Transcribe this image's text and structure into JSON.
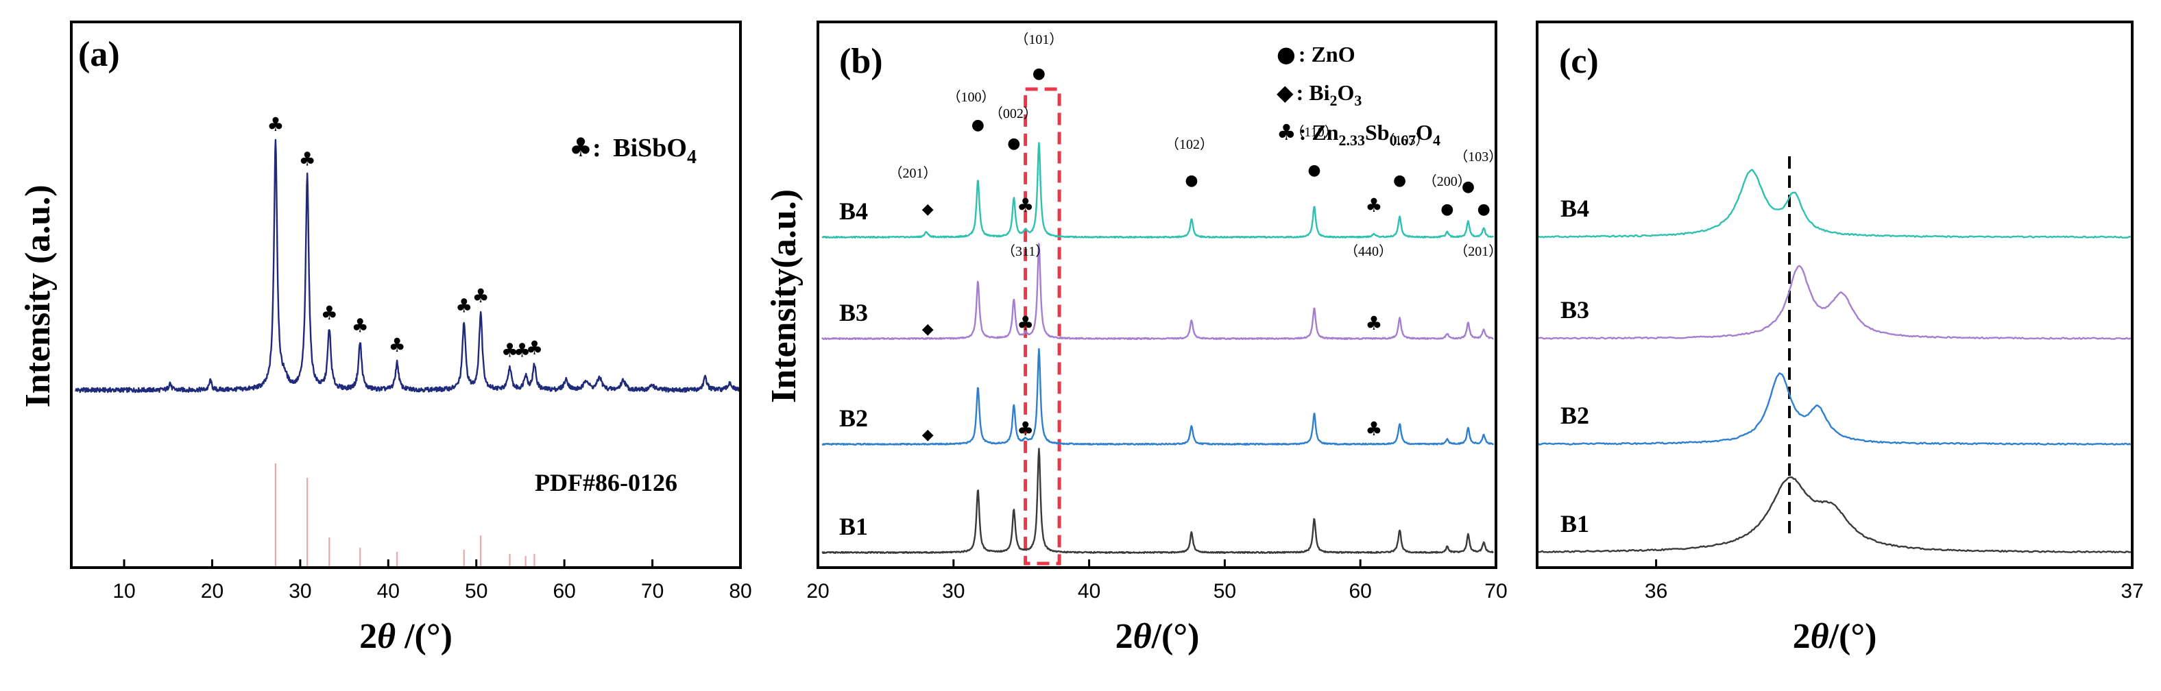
{
  "colors": {
    "panel_a_trace": "#1f2a7a",
    "reference_bars": "#e6a8a8",
    "B1": "#3a3a3a",
    "B2": "#2f7fcf",
    "B3": "#a57ed0",
    "B4": "#2fc0b0",
    "highlight_box": "#e8384a"
  },
  "marker_icons": {
    "ZnO": "filled-circle-icon",
    "Bi2O3": "filled-diamond-icon",
    "Zn2.33Sb0.67O4": "club-icon",
    "BiSbO4": "club-icon"
  },
  "chart_data": [
    {
      "panel": "(a)",
      "type": "line",
      "xlabel_main": "2",
      "xlabel_italic": "θ",
      "xlabel_unit": " /(°)",
      "ylabel": "Intensity (a.u.)",
      "xlim": [
        4,
        80
      ],
      "xticks": [
        "10",
        "20",
        "30",
        "40",
        "50",
        "60",
        "70",
        "80"
      ],
      "xtick_values": [
        10,
        20,
        30,
        40,
        50,
        60,
        70,
        80
      ],
      "legend": {
        "marker": "♣",
        "sep": ": ",
        "text": "BiSbO",
        "sub": "4"
      },
      "reference_label": "PDF#86-0126",
      "baseline": 0.08,
      "peaks": [
        {
          "x": 15.2,
          "h": 0.03,
          "w": 0.15
        },
        {
          "x": 19.8,
          "h": 0.04,
          "w": 0.15
        },
        {
          "x": 27.2,
          "h": 1.0,
          "w": 0.22
        },
        {
          "x": 28.2,
          "h": 0.04,
          "w": 0.4
        },
        {
          "x": 30.8,
          "h": 0.86,
          "w": 0.22
        },
        {
          "x": 33.3,
          "h": 0.24,
          "w": 0.22
        },
        {
          "x": 36.8,
          "h": 0.19,
          "w": 0.22
        },
        {
          "x": 41.0,
          "h": 0.11,
          "w": 0.22
        },
        {
          "x": 48.6,
          "h": 0.27,
          "w": 0.22
        },
        {
          "x": 50.5,
          "h": 0.31,
          "w": 0.22
        },
        {
          "x": 53.8,
          "h": 0.09,
          "w": 0.22
        },
        {
          "x": 55.6,
          "h": 0.06,
          "w": 0.22
        },
        {
          "x": 56.6,
          "h": 0.1,
          "w": 0.22
        },
        {
          "x": 60.2,
          "h": 0.04,
          "w": 0.3
        },
        {
          "x": 62.5,
          "h": 0.04,
          "w": 0.3
        },
        {
          "x": 64.0,
          "h": 0.05,
          "w": 0.3
        },
        {
          "x": 66.7,
          "h": 0.04,
          "w": 0.3
        },
        {
          "x": 70.0,
          "h": 0.02,
          "w": 0.3
        },
        {
          "x": 76.0,
          "h": 0.05,
          "w": 0.25
        },
        {
          "x": 78.8,
          "h": 0.03,
          "w": 0.25
        }
      ],
      "peak_markers": [
        {
          "x": 27.2,
          "y": 1.0
        },
        {
          "x": 30.8,
          "y": 0.86
        },
        {
          "x": 33.3,
          "y": 0.24
        },
        {
          "x": 36.8,
          "y": 0.19
        },
        {
          "x": 41.0,
          "y": 0.11
        },
        {
          "x": 48.6,
          "y": 0.27
        },
        {
          "x": 50.5,
          "y": 0.31
        },
        {
          "x": 53.8,
          "y": 0.09
        },
        {
          "x": 55.2,
          "y": 0.09
        },
        {
          "x": 56.6,
          "y": 0.1
        }
      ],
      "reference_lines": [
        {
          "x": 27.2,
          "h": 1.0
        },
        {
          "x": 30.8,
          "h": 0.86
        },
        {
          "x": 33.3,
          "h": 0.28
        },
        {
          "x": 36.8,
          "h": 0.18
        },
        {
          "x": 41.0,
          "h": 0.14
        },
        {
          "x": 48.6,
          "h": 0.16
        },
        {
          "x": 50.5,
          "h": 0.3
        },
        {
          "x": 53.8,
          "h": 0.12
        },
        {
          "x": 55.6,
          "h": 0.1
        },
        {
          "x": 56.6,
          "h": 0.12
        }
      ]
    },
    {
      "panel": "(b)",
      "type": "line",
      "xlabel_main": "2",
      "xlabel_italic": "θ",
      "xlabel_unit": "/(°)",
      "ylabel": "Intensity(a.u.)",
      "xlim": [
        20,
        70
      ],
      "xticks": [
        "20",
        "30",
        "40",
        "50",
        "60",
        "70"
      ],
      "xtick_values": [
        20,
        30,
        40,
        50,
        60,
        70
      ],
      "legend": [
        {
          "marker": "●",
          "text": ": ZnO"
        },
        {
          "marker": "◆",
          "text": ": Bi",
          "sub": "2",
          "text2": "O",
          "sub2": "3"
        },
        {
          "marker": "♣",
          "text": ": Zn",
          "sub": "2.33",
          "text2": "Sb",
          "sub2": "0.67",
          "text3": "O",
          "sub3": "4"
        }
      ],
      "highlight_box_x": [
        35.3,
        37.8
      ],
      "peaks": [
        {
          "x": 31.8,
          "h": 0.56,
          "w": 0.13
        },
        {
          "x": 34.45,
          "h": 0.38,
          "w": 0.13
        },
        {
          "x": 36.3,
          "h": 0.92,
          "w": 0.13
        },
        {
          "x": 47.55,
          "h": 0.18,
          "w": 0.13
        },
        {
          "x": 56.6,
          "h": 0.3,
          "w": 0.13
        },
        {
          "x": 62.9,
          "h": 0.2,
          "w": 0.13
        },
        {
          "x": 66.4,
          "h": 0.05,
          "w": 0.12
        },
        {
          "x": 67.95,
          "h": 0.16,
          "w": 0.12
        },
        {
          "x": 69.1,
          "h": 0.09,
          "w": 0.12
        }
      ],
      "series": [
        {
          "name": "B4",
          "scale": 1.0,
          "extra": [
            {
              "x": 28.0,
              "h": 0.05,
              "w": 0.15
            },
            {
              "x": 35.3,
              "h": 0.06,
              "w": 0.15
            },
            {
              "x": 61.0,
              "h": 0.03,
              "w": 0.15
            }
          ]
        },
        {
          "name": "B3",
          "scale": 1.0,
          "extra": [
            {
              "x": 35.3,
              "h": 0.04,
              "w": 0.15
            }
          ]
        },
        {
          "name": "B2",
          "scale": 1.0,
          "extra": [
            {
              "x": 35.3,
              "h": 0.04,
              "w": 0.15
            }
          ]
        },
        {
          "name": "B1",
          "scale": 1.1,
          "extra": []
        }
      ],
      "hkl_labels": [
        {
          "text": "（201）",
          "x": 27.0,
          "y": 0.58
        },
        {
          "text": "（100）",
          "x": 31.3,
          "y": 1.32
        },
        {
          "text": "（002）",
          "x": 34.4,
          "y": 1.16
        },
        {
          "text": "（101）",
          "x": 36.3,
          "y": 1.88
        },
        {
          "text": "（311）",
          "x": 35.3,
          "y": -0.18
        },
        {
          "text": "（102）",
          "x": 47.4,
          "y": 0.86
        },
        {
          "text": "（110）",
          "x": 56.6,
          "y": 0.98
        },
        {
          "text": "（103）",
          "x": 63.3,
          "y": 0.9
        },
        {
          "text": "（200）",
          "x": 66.4,
          "y": 0.5
        },
        {
          "text": "（103）",
          "x": 68.7,
          "y": 0.74
        },
        {
          "text": "（440）",
          "x": 60.6,
          "y": -0.18
        },
        {
          "text": "（201）",
          "x": 68.7,
          "y": -0.18
        }
      ],
      "markers": [
        {
          "series": "B4",
          "symbol": "◆",
          "x": 28.1,
          "y": 0.28
        },
        {
          "series": "B4",
          "symbol": "●",
          "x": 31.8,
          "y": 1.1
        },
        {
          "series": "B4",
          "symbol": "●",
          "x": 34.45,
          "y": 0.92
        },
        {
          "series": "B4",
          "symbol": "●",
          "x": 36.3,
          "y": 1.6
        },
        {
          "series": "B4",
          "symbol": "♣",
          "x": 35.3,
          "y": 0.3
        },
        {
          "series": "B4",
          "symbol": "●",
          "x": 47.55,
          "y": 0.56
        },
        {
          "series": "B4",
          "symbol": "●",
          "x": 56.6,
          "y": 0.66
        },
        {
          "series": "B4",
          "symbol": "♣",
          "x": 61.0,
          "y": 0.3
        },
        {
          "series": "B4",
          "symbol": "●",
          "x": 62.9,
          "y": 0.56
        },
        {
          "series": "B4",
          "symbol": "●",
          "x": 66.4,
          "y": 0.28
        },
        {
          "series": "B4",
          "symbol": "●",
          "x": 67.95,
          "y": 0.5
        },
        {
          "series": "B4",
          "symbol": "●",
          "x": 69.1,
          "y": 0.28
        },
        {
          "series": "B3",
          "symbol": "◆",
          "x": 28.1,
          "y": 0.1
        },
        {
          "series": "B3",
          "symbol": "♣",
          "x": 35.3,
          "y": 0.14
        },
        {
          "series": "B3",
          "symbol": "♣",
          "x": 61.0,
          "y": 0.14
        },
        {
          "series": "B2",
          "symbol": "◆",
          "x": 28.1,
          "y": 0.1
        },
        {
          "series": "B2",
          "symbol": "♣",
          "x": 35.3,
          "y": 0.14
        },
        {
          "series": "B2",
          "symbol": "♣",
          "x": 61.0,
          "y": 0.14
        }
      ]
    },
    {
      "panel": "(c)",
      "type": "line",
      "xlabel_main": "2",
      "xlabel_italic": "θ",
      "xlabel_unit": "/(°)",
      "xlim": [
        35.75,
        37.0
      ],
      "xticks": [
        "36",
        "37"
      ],
      "xtick_values": [
        36.0,
        37.0
      ],
      "dashed_line_x": 36.28,
      "series": [
        {
          "name": "B4",
          "peaks": [
            {
              "x": 36.2,
              "h": 0.95,
              "w": 0.032
            },
            {
              "x": 36.29,
              "h": 0.55,
              "w": 0.022
            }
          ]
        },
        {
          "name": "B3",
          "peaks": [
            {
              "x": 36.3,
              "h": 1.0,
              "w": 0.028
            },
            {
              "x": 36.39,
              "h": 0.58,
              "w": 0.03
            }
          ]
        },
        {
          "name": "B2",
          "peaks": [
            {
              "x": 36.26,
              "h": 1.0,
              "w": 0.028
            },
            {
              "x": 36.34,
              "h": 0.45,
              "w": 0.024
            }
          ]
        },
        {
          "name": "B1",
          "peaks": [
            {
              "x": 36.28,
              "h": 1.0,
              "w": 0.05
            },
            {
              "x": 36.37,
              "h": 0.48,
              "w": 0.045
            }
          ]
        }
      ]
    }
  ]
}
